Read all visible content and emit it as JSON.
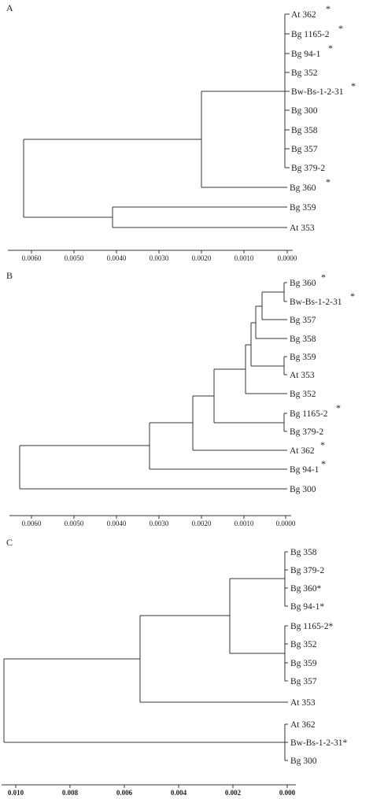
{
  "panels": [
    {
      "label": "A",
      "axis_ticks": [
        "0.0060",
        "0.0050",
        "0.0040",
        "0.0030",
        "0.0020",
        "0.0010",
        "0.0000"
      ],
      "leaves": [
        {
          "name": "At 362",
          "mark": "*"
        },
        {
          "name": "Bg 1165-2",
          "mark": "*"
        },
        {
          "name": "Bg 94-1",
          "mark": "*"
        },
        {
          "name": "Bg 352",
          "mark": ""
        },
        {
          "name": "Bw-Bs-1-2-31",
          "mark": "*"
        },
        {
          "name": "Bg 300",
          "mark": ""
        },
        {
          "name": "Bg 358",
          "mark": ""
        },
        {
          "name": "Bg 357",
          "mark": ""
        },
        {
          "name": "Bg 379-2",
          "mark": ""
        },
        {
          "name": "Bg 360",
          "mark": "*"
        },
        {
          "name": "Bg 359",
          "mark": ""
        },
        {
          "name": "At 353",
          "mark": ""
        }
      ]
    },
    {
      "label": "B",
      "axis_ticks": [
        "0.0060",
        "0.0050",
        "0.0040",
        "0.0030",
        "0.0020",
        "0.0010",
        "0.0000"
      ],
      "leaves": [
        {
          "name": "Bg 360",
          "mark": "*"
        },
        {
          "name": "Bw-Bs-1-2-31",
          "mark": "*"
        },
        {
          "name": "Bg 357",
          "mark": ""
        },
        {
          "name": "Bg 358",
          "mark": ""
        },
        {
          "name": "Bg 359",
          "mark": ""
        },
        {
          "name": "At 353",
          "mark": ""
        },
        {
          "name": "Bg 352",
          "mark": ""
        },
        {
          "name": "Bg 1165-2",
          "mark": "*"
        },
        {
          "name": "Bg 379-2",
          "mark": ""
        },
        {
          "name": "At 362",
          "mark": "*"
        },
        {
          "name": "Bg 94-1",
          "mark": "*"
        },
        {
          "name": "Bg 300",
          "mark": ""
        }
      ]
    },
    {
      "label": "C",
      "axis_ticks": [
        "0.010",
        "0.008",
        "0.006",
        "0.004",
        "0.002",
        "0.000"
      ],
      "leaves": [
        {
          "name": "Bg 358",
          "mark": ""
        },
        {
          "name": "Bg 379-2",
          "mark": ""
        },
        {
          "name": "Bg 360*",
          "mark": ""
        },
        {
          "name": "Bg 94-1*",
          "mark": ""
        },
        {
          "name": "Bg 1165-2*",
          "mark": ""
        },
        {
          "name": "Bg 352",
          "mark": ""
        },
        {
          "name": "Bg 359",
          "mark": ""
        },
        {
          "name": "Bg 357",
          "mark": ""
        },
        {
          "name": "At 353",
          "mark": ""
        },
        {
          "name": "At 362",
          "mark": ""
        },
        {
          "name": "Bw-Bs-1-2-31*",
          "mark": ""
        },
        {
          "name": "Bg 300",
          "mark": ""
        }
      ]
    }
  ]
}
